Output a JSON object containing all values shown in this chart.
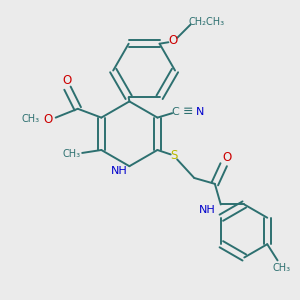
{
  "bg_color": "#ebebeb",
  "bond_color": "#2d7070",
  "N_color": "#0000cc",
  "O_color": "#cc0000",
  "S_color": "#b8b800",
  "text_color": "#2d7070",
  "figsize": [
    3.0,
    3.0
  ],
  "dpi": 100,
  "xlim": [
    0,
    10
  ],
  "ylim": [
    0,
    10
  ]
}
